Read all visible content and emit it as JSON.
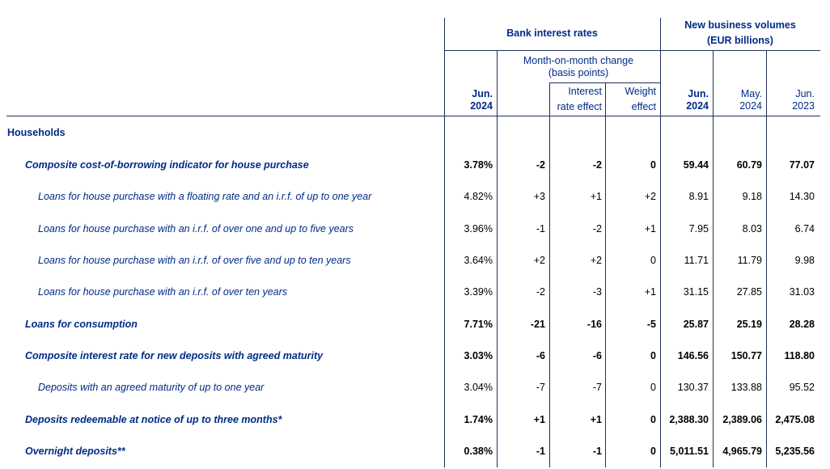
{
  "header": {
    "bank_interest_rates": "Bank interest rates",
    "new_business_line1": "New business volumes",
    "new_business_line2": "(EUR billions)",
    "mom_line1": "Month-on-month change",
    "mom_line2": "(basis points)",
    "interest_line1": "Interest",
    "interest_line2": "rate effect",
    "weight_line1": "Weight",
    "weight_line2": "effect",
    "jun_2024_a_line1": "Jun.",
    "jun_2024_a_line2": "2024",
    "jun_2024_b_line1": "Jun.",
    "jun_2024_b_line2": "2024",
    "may_2024_line1": "May.",
    "may_2024_line2": "2024",
    "jun_2023_line1": "Jun.",
    "jun_2023_line2": "2023"
  },
  "section": "Households",
  "rows": [
    {
      "label": "Composite cost-of-borrowing indicator for house purchase",
      "bold": true,
      "indent": 1,
      "rate": "3.78%",
      "mom": "-2",
      "ire": "-2",
      "we": "0",
      "jun24": "59.44",
      "may24": "60.79",
      "jun23": "77.07"
    },
    {
      "label": "Loans for house purchase with a floating rate and an i.r.f. of up to one year",
      "bold": false,
      "indent": 2,
      "rate": "4.82%",
      "mom": "+3",
      "ire": "+1",
      "we": "+2",
      "jun24": "8.91",
      "may24": "9.18",
      "jun23": "14.30"
    },
    {
      "label": "Loans for house purchase with an i.r.f. of over one and up to five years",
      "bold": false,
      "indent": 2,
      "rate": "3.96%",
      "mom": "-1",
      "ire": "-2",
      "we": "+1",
      "jun24": "7.95",
      "may24": "8.03",
      "jun23": "6.74"
    },
    {
      "label": "Loans for house purchase with an i.r.f. of over five and up to ten years",
      "bold": false,
      "indent": 2,
      "rate": "3.64%",
      "mom": "+2",
      "ire": "+2",
      "we": "0",
      "jun24": "11.71",
      "may24": "11.79",
      "jun23": "9.98"
    },
    {
      "label": "Loans for house purchase with an i.r.f. of over ten years",
      "bold": false,
      "indent": 2,
      "rate": "3.39%",
      "mom": "-2",
      "ire": "-3",
      "we": "+1",
      "jun24": "31.15",
      "may24": "27.85",
      "jun23": "31.03"
    },
    {
      "label": "Loans for consumption",
      "bold": true,
      "indent": 1,
      "rate": "7.71%",
      "mom": "-21",
      "ire": "-16",
      "we": "-5",
      "jun24": "25.87",
      "may24": "25.19",
      "jun23": "28.28"
    },
    {
      "label": "Composite interest rate for new deposits with agreed maturity",
      "bold": true,
      "indent": 1,
      "rate": "3.03%",
      "mom": "-6",
      "ire": "-6",
      "we": "0",
      "jun24": "146.56",
      "may24": "150.77",
      "jun23": "118.80"
    },
    {
      "label": "Deposits with an agreed maturity of up to one year",
      "bold": false,
      "indent": 2,
      "rate": "3.04%",
      "mom": "-7",
      "ire": "-7",
      "we": "0",
      "jun24": "130.37",
      "may24": "133.88",
      "jun23": "95.52"
    },
    {
      "label": "Deposits redeemable at notice of up to three months*",
      "bold": true,
      "indent": 1,
      "rate": "1.74%",
      "mom": "+1",
      "ire": "+1",
      "we": "0",
      "jun24": "2,388.30",
      "may24": "2,389.06",
      "jun23": "2,475.08"
    },
    {
      "label": "Overnight deposits**",
      "bold": true,
      "indent": 1,
      "rate": "0.38%",
      "mom": "-1",
      "ire": "-1",
      "we": "0",
      "jun24": "5,011.51",
      "may24": "4,965.79",
      "jun23": "5,235.56"
    }
  ]
}
